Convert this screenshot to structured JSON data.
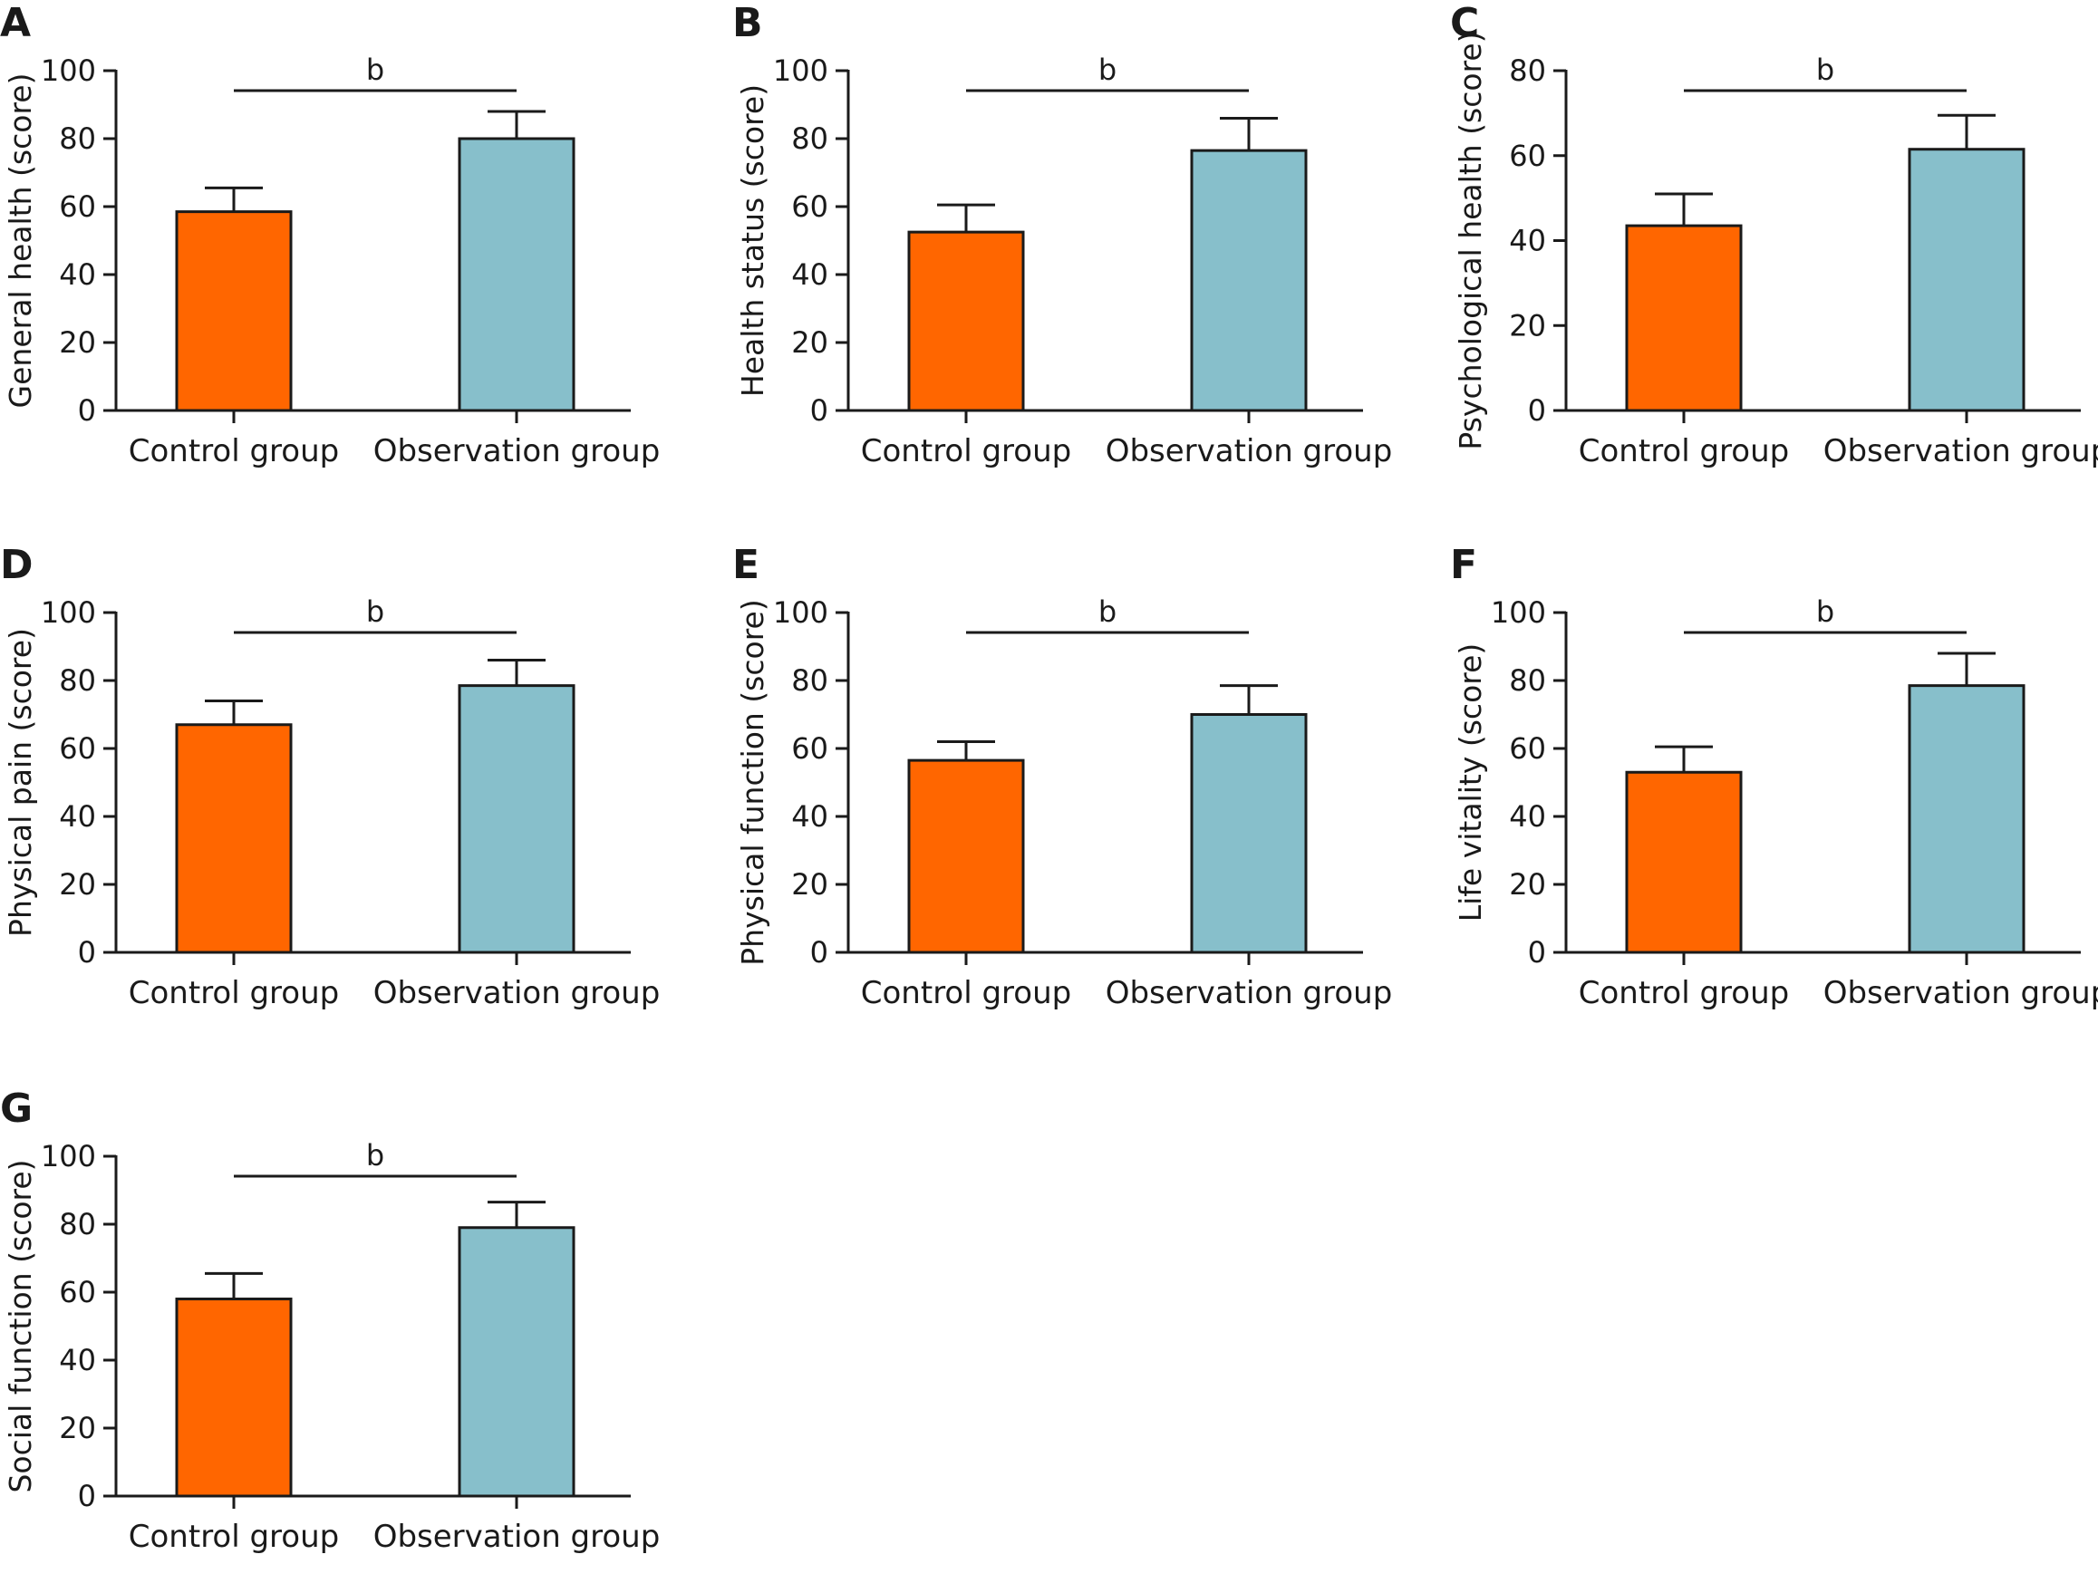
{
  "colors": {
    "control": "#FF6600",
    "observation": "#87BFCB",
    "ink": "#1a1a1a"
  },
  "chart_data": [
    {
      "panel": "A",
      "type": "bar",
      "ylabel": "General health (score)",
      "categories": [
        "Control group",
        "Observation group"
      ],
      "values": [
        58.5,
        80
      ],
      "errors": [
        7,
        8
      ],
      "ylim": [
        0,
        100
      ],
      "yticks": [
        "0",
        "20",
        "40",
        "60",
        "80",
        "100"
      ],
      "significance": "b"
    },
    {
      "panel": "B",
      "type": "bar",
      "ylabel": "Health status (score)",
      "categories": [
        "Control group",
        "Observation group"
      ],
      "values": [
        52.5,
        76.5
      ],
      "errors": [
        8,
        9.5
      ],
      "ylim": [
        0,
        100
      ],
      "yticks": [
        "0",
        "20",
        "40",
        "60",
        "80",
        "100"
      ],
      "significance": "b"
    },
    {
      "panel": "C",
      "type": "bar",
      "ylabel": "Psychological health (score)",
      "categories": [
        "Control group",
        "Observation group"
      ],
      "values": [
        43.5,
        61.5
      ],
      "errors": [
        7.5,
        8
      ],
      "ylim": [
        0,
        80
      ],
      "yticks": [
        "0",
        "20",
        "40",
        "60",
        "80"
      ],
      "significance": "b"
    },
    {
      "panel": "D",
      "type": "bar",
      "ylabel": "Physical pain (score)",
      "categories": [
        "Control group",
        "Observation group"
      ],
      "values": [
        67,
        78.5
      ],
      "errors": [
        7,
        7.5
      ],
      "ylim": [
        0,
        100
      ],
      "yticks": [
        "0",
        "20",
        "40",
        "60",
        "80",
        "100"
      ],
      "significance": "b"
    },
    {
      "panel": "E",
      "type": "bar",
      "ylabel": "Physical function (score)",
      "categories": [
        "Control group",
        "Observation group"
      ],
      "values": [
        56.5,
        70
      ],
      "errors": [
        5.5,
        8.5
      ],
      "ylim": [
        0,
        100
      ],
      "yticks": [
        "0",
        "20",
        "40",
        "60",
        "80",
        "100"
      ],
      "significance": "b"
    },
    {
      "panel": "F",
      "type": "bar",
      "ylabel": "Life vitality (score)",
      "categories": [
        "Control group",
        "Observation group"
      ],
      "values": [
        53,
        78.5
      ],
      "errors": [
        7.5,
        9.5
      ],
      "ylim": [
        0,
        100
      ],
      "yticks": [
        "0",
        "20",
        "40",
        "60",
        "80",
        "100"
      ],
      "significance": "b"
    },
    {
      "panel": "G",
      "type": "bar",
      "ylabel": "Social function (score)",
      "categories": [
        "Control group",
        "Observation group"
      ],
      "values": [
        58,
        79
      ],
      "errors": [
        7.5,
        7.5
      ],
      "ylim": [
        0,
        100
      ],
      "yticks": [
        "0",
        "20",
        "40",
        "60",
        "80",
        "100"
      ],
      "significance": "b"
    }
  ]
}
